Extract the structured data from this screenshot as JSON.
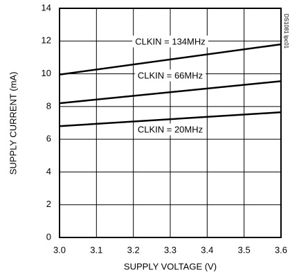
{
  "chart_data": {
    "type": "line",
    "xlabel": "SUPPLY VOLTAGE (V)",
    "ylabel": "SUPPLY CURRENT (mA)",
    "note": "DS1081 lpc01",
    "x": [
      3.0,
      3.6
    ],
    "series": [
      {
        "name": "CLKIN = 134MHz",
        "color": "#000000",
        "values": [
          9.95,
          11.8
        ]
      },
      {
        "name": "CLKIN = 66MHz",
        "color": "#000000",
        "values": [
          8.2,
          9.55
        ]
      },
      {
        "name": "CLKIN = 20MHz",
        "color": "#000000",
        "values": [
          6.8,
          7.65
        ]
      }
    ],
    "xlim": [
      3.0,
      3.6
    ],
    "xticks": [
      {
        "value": 3.0,
        "label": "3.0"
      },
      3.1,
      3.2,
      3.3,
      3.4,
      3.5,
      3.6
    ],
    "ylim": [
      0,
      14
    ],
    "yticks": [
      0,
      2,
      4,
      6,
      8,
      10,
      12,
      14
    ],
    "grid": true
  }
}
